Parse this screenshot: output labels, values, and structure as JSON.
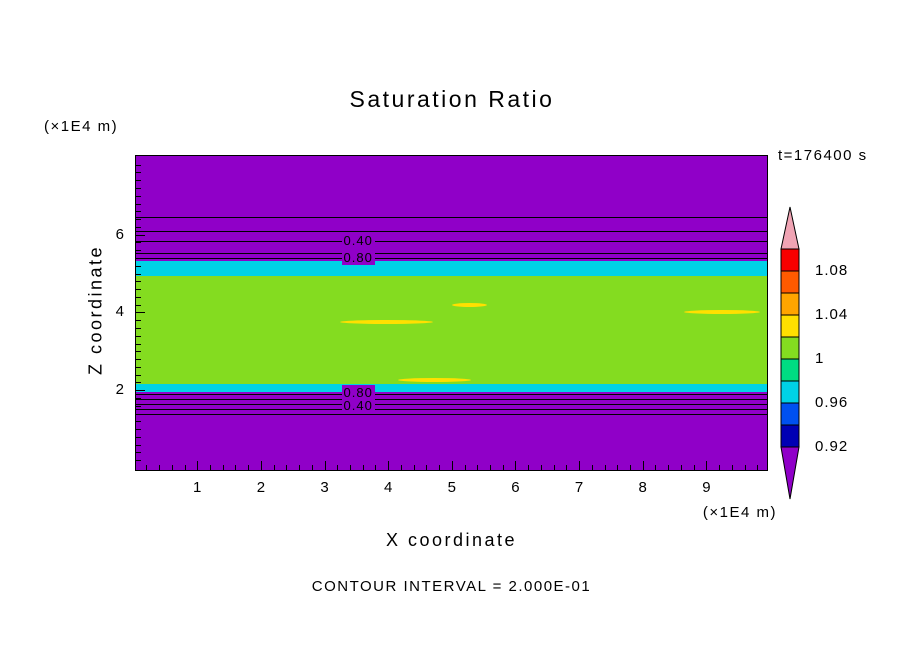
{
  "title": "Saturation Ratio",
  "time_label": "t=176400 s",
  "contour_note": "CONTOUR INTERVAL = 2.000E-01",
  "x_axis": {
    "label": "X coordinate",
    "unit": "(×1E4 m)",
    "ticks": [
      1,
      2,
      3,
      4,
      5,
      6,
      7,
      8,
      9
    ]
  },
  "z_axis": {
    "label": "Z coordinate",
    "unit": "(×1E4 m)",
    "ticks": [
      6,
      4,
      2
    ]
  },
  "colorbar": {
    "labels": [
      "1.08",
      "1.04",
      "1",
      "0.96",
      "0.92"
    ],
    "colors_top_to_bottom": [
      "#F0A4B4",
      "#F80000",
      "#FF5A00",
      "#FFA500",
      "#FFE000",
      "#84DC20",
      "#00DC82",
      "#00D2E6",
      "#0050F0",
      "#0000B4",
      "#9000C8"
    ]
  },
  "palette": {
    "purple": "#9000C8",
    "cyan": "#00D2E6",
    "yellow_green": "#84DC20",
    "yellow": "#FFE000",
    "line": "#000000"
  },
  "contour_line_labels": [
    {
      "text": "0.40",
      "x": 3.55,
      "z": 5.84
    },
    {
      "text": "0.80",
      "x": 3.55,
      "z": 5.4
    },
    {
      "text": "0.80",
      "x": 3.55,
      "z": 1.93
    },
    {
      "text": "0.40",
      "x": 3.55,
      "z": 1.6
    }
  ],
  "chart_data": {
    "type": "heatmap",
    "title": "Saturation Ratio",
    "xlabel": "X coordinate (×1E4 m)",
    "ylabel": "Z coordinate (×1E4 m)",
    "x_range": [
      0,
      10
    ],
    "z_range": [
      0,
      8
    ],
    "time": "t=176400 s",
    "contour_interval": "2.000E-01",
    "colorbar_ticks": [
      1.08,
      1.04,
      1,
      0.96,
      0.92
    ],
    "layers": [
      {
        "z_min": 5.32,
        "z_max": 8.1,
        "color": "purple",
        "approx_value": "< 0.92"
      },
      {
        "z_min": 4.93,
        "z_max": 5.32,
        "color": "cyan",
        "approx_value": "0.96"
      },
      {
        "z_min": 2.16,
        "z_max": 4.93,
        "color": "yellow_green",
        "approx_value": "1.00"
      },
      {
        "z_min": 1.95,
        "z_max": 2.16,
        "color": "cyan",
        "approx_value": "0.96"
      },
      {
        "z_min": 0.0,
        "z_max": 1.95,
        "color": "purple",
        "approx_value": "< 0.92"
      }
    ],
    "contour_lines": {
      "upper_z": [
        6.45,
        6.09,
        5.84,
        5.53,
        5.4
      ],
      "lower_z": [
        1.9,
        1.77,
        1.64,
        1.51,
        1.38
      ]
    },
    "anomalies": [
      {
        "x_from": 3.25,
        "x_to": 4.7,
        "z": 3.75,
        "color": "yellow"
      },
      {
        "x_from": 5.0,
        "x_to": 5.55,
        "z": 4.2,
        "color": "yellow"
      },
      {
        "x_from": 8.65,
        "x_to": 9.85,
        "z": 4.0,
        "color": "yellow"
      },
      {
        "x_from": 4.15,
        "x_to": 5.3,
        "z": 2.26,
        "color": "yellow"
      }
    ]
  }
}
